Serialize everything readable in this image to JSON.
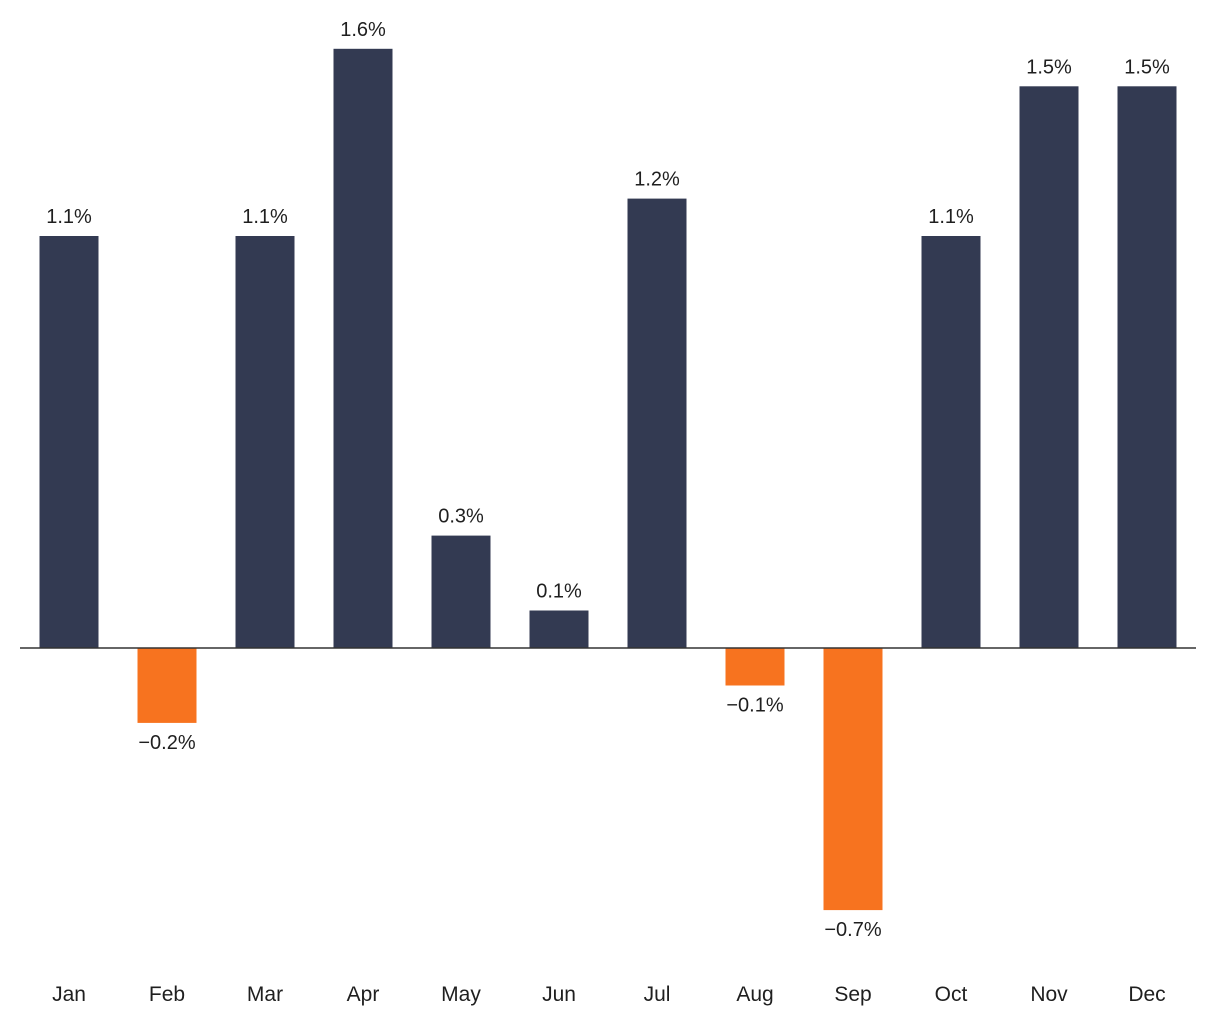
{
  "chart_data": {
    "type": "bar",
    "title": "",
    "xlabel": "",
    "ylabel": "",
    "categories": [
      "Jan",
      "Feb",
      "Mar",
      "Apr",
      "May",
      "Jun",
      "Jul",
      "Aug",
      "Sep",
      "Oct",
      "Nov",
      "Dec"
    ],
    "values": [
      1.1,
      -0.2,
      1.1,
      1.6,
      0.3,
      0.1,
      1.2,
      -0.1,
      -0.7,
      1.1,
      1.5,
      1.5
    ],
    "value_labels": [
      "1.1%",
      "−0.2%",
      "1.1%",
      "1.6%",
      "0.3%",
      "0.1%",
      "1.2%",
      "−0.1%",
      "−0.7%",
      "1.1%",
      "1.5%",
      "1.5%"
    ],
    "ylim": [
      -0.75,
      1.6
    ],
    "grid": false,
    "colors": {
      "positive": "#333a52",
      "negative": "#f7731f",
      "axis": "#333333"
    }
  }
}
